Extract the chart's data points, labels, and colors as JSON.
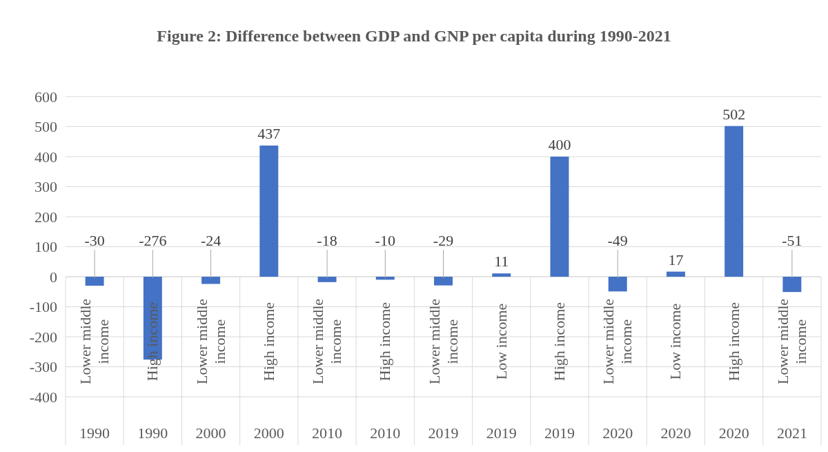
{
  "chart_data": {
    "type": "bar",
    "title": "Figure 2: Difference between GDP and GNP per capita during 1990-2021",
    "categories": [
      "Lower middle income",
      "High income",
      "Lower middle income",
      "High income",
      "Lower middle income",
      "High income",
      "Lower middle income",
      "Low income",
      "High income",
      "Lower middle income",
      "Low income",
      "High income",
      "Lower middle income"
    ],
    "values": [
      -30,
      -276,
      -24,
      437,
      -18,
      -10,
      -29,
      11,
      400,
      -49,
      17,
      502,
      -51
    ],
    "color": "#4472c4",
    "annotations": [
      "1990",
      "1990",
      "2000",
      "2000",
      "2010",
      "2010",
      "2019",
      "2019",
      "2019",
      "2020",
      "2020",
      "2020",
      "2021"
    ],
    "ylim": [
      -400,
      600
    ],
    "yticks": [
      -400,
      -300,
      -200,
      -100,
      0,
      100,
      200,
      300,
      400,
      500,
      600
    ],
    "grid": "y",
    "data_labels": true
  }
}
